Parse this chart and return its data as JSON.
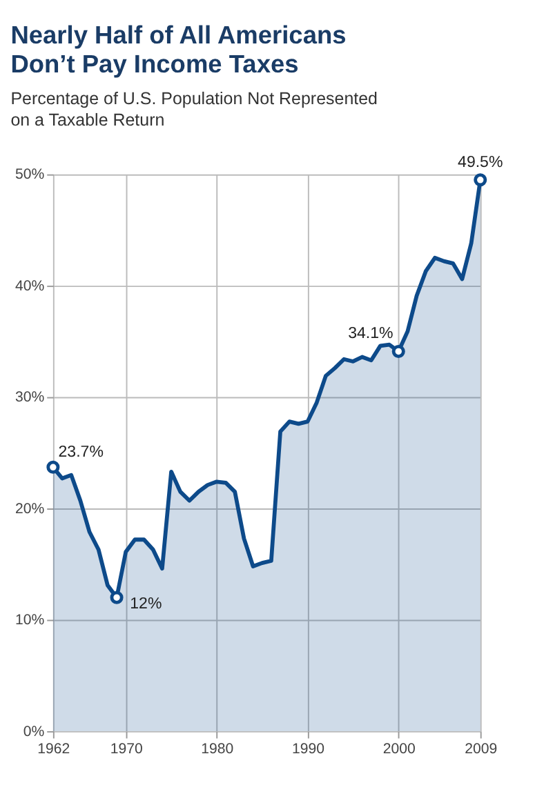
{
  "chart_data": {
    "type": "area",
    "title": "Nearly Half of All Americans\nDon’t Pay Income Taxes",
    "subtitle": "Percentage of U.S. Population Not Represented\non a Taxable Return",
    "x": [
      1962,
      1963,
      1964,
      1965,
      1966,
      1967,
      1968,
      1969,
      1970,
      1971,
      1972,
      1973,
      1974,
      1975,
      1976,
      1977,
      1978,
      1979,
      1980,
      1981,
      1982,
      1983,
      1984,
      1985,
      1986,
      1987,
      1988,
      1989,
      1990,
      1991,
      1992,
      1993,
      1994,
      1995,
      1996,
      1997,
      1998,
      1999,
      2000,
      2001,
      2002,
      2003,
      2004,
      2005,
      2006,
      2007,
      2008,
      2009
    ],
    "series": [
      {
        "color": "#0d4a8a",
        "values": [
          23.7,
          22.7,
          23.0,
          20.7,
          17.9,
          16.3,
          13.1,
          12,
          16.1,
          17.2,
          17.2,
          16.3,
          14.6,
          23.3,
          21.5,
          20.7,
          21.5,
          22.1,
          22.4,
          22.3,
          21.5,
          17.3,
          14.8,
          15.1,
          15.3,
          26.9,
          27.8,
          27.6,
          27.8,
          29.5,
          31.9,
          32.6,
          33.4,
          33.2,
          33.6,
          33.3,
          34.6,
          34.7,
          34.1,
          35.9,
          39.1,
          41.3,
          42.5,
          42.2,
          42.0,
          40.6,
          43.8,
          49.5
        ],
        "value_labels": [
          "23.7%",
          null,
          null,
          null,
          null,
          null,
          null,
          "12%",
          null,
          null,
          null,
          null,
          null,
          null,
          null,
          null,
          null,
          null,
          null,
          null,
          null,
          null,
          null,
          null,
          null,
          null,
          null,
          null,
          null,
          null,
          null,
          null,
          null,
          null,
          null,
          null,
          null,
          null,
          "34.1%",
          null,
          null,
          null,
          null,
          null,
          null,
          null,
          null,
          "49.5%"
        ]
      }
    ],
    "xlim": [
      1962,
      2009
    ],
    "xticks": [
      1962,
      1970,
      1980,
      1990,
      2000,
      2009
    ],
    "ylim": [
      0,
      50
    ],
    "yticks": [
      {
        "value": 0,
        "label": "0%"
      },
      {
        "value": 10,
        "label": "10%"
      },
      {
        "value": 20,
        "label": "20%"
      },
      {
        "value": 30,
        "label": "30%"
      },
      {
        "value": 40,
        "label": "40%"
      },
      {
        "value": 50,
        "label": "50%"
      }
    ],
    "grid": true
  }
}
